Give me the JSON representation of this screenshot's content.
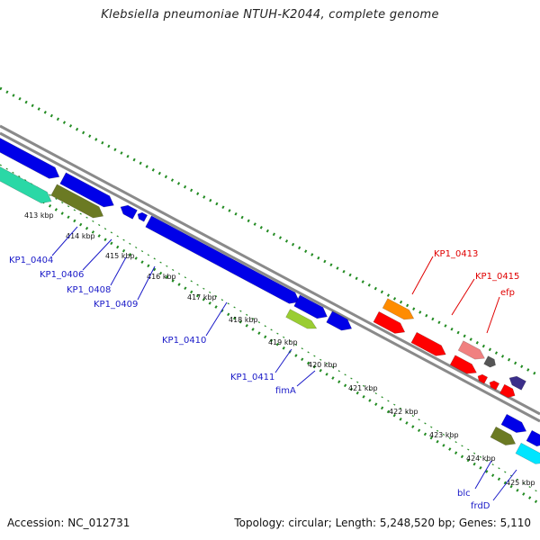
{
  "title": "Klebsiella pneumoniae NTUH-K2044, complete genome",
  "footer": {
    "accession": "Accession: NC_012731",
    "summary": "Topology: circular; Length: 5,248,520 bp; Genes: 5,110"
  },
  "colors": {
    "backbone": "#8a8a8a",
    "tick": "#228b22",
    "cds": "#0000e8",
    "highlight": "#ff0000",
    "label_blue": "#1a1ac8",
    "label_red": "#e00000"
  },
  "scale_labels": [
    "413 kbp",
    "414 kbp",
    "415 kbp",
    "416 kbp",
    "417 kbp",
    "418 kbp",
    "419 kbp",
    "420 kbp",
    "421 kbp",
    "422 kbp",
    "423 kbp",
    "424 kbp",
    "425 kbp"
  ],
  "gene_labels": [
    {
      "id": "kp1_0404",
      "text": "KP1_0404",
      "color": "blue"
    },
    {
      "id": "kp1_0406",
      "text": "KP1_0406",
      "color": "blue"
    },
    {
      "id": "kp1_0408",
      "text": "KP1_0408",
      "color": "blue"
    },
    {
      "id": "kp1_0409",
      "text": "KP1_0409",
      "color": "blue"
    },
    {
      "id": "kp1_0410",
      "text": "KP1_0410",
      "color": "blue"
    },
    {
      "id": "kp1_0411",
      "text": "KP1_0411",
      "color": "blue"
    },
    {
      "id": "fima",
      "text": "fimA",
      "color": "blue"
    },
    {
      "id": "blc",
      "text": "blc",
      "color": "blue"
    },
    {
      "id": "frdd",
      "text": "frdD",
      "color": "blue"
    },
    {
      "id": "kp1_0413",
      "text": "KP1_0413",
      "color": "red"
    },
    {
      "id": "kp1_0415",
      "text": "KP1_0415",
      "color": "red"
    },
    {
      "id": "efp",
      "text": "efp",
      "color": "red"
    }
  ]
}
